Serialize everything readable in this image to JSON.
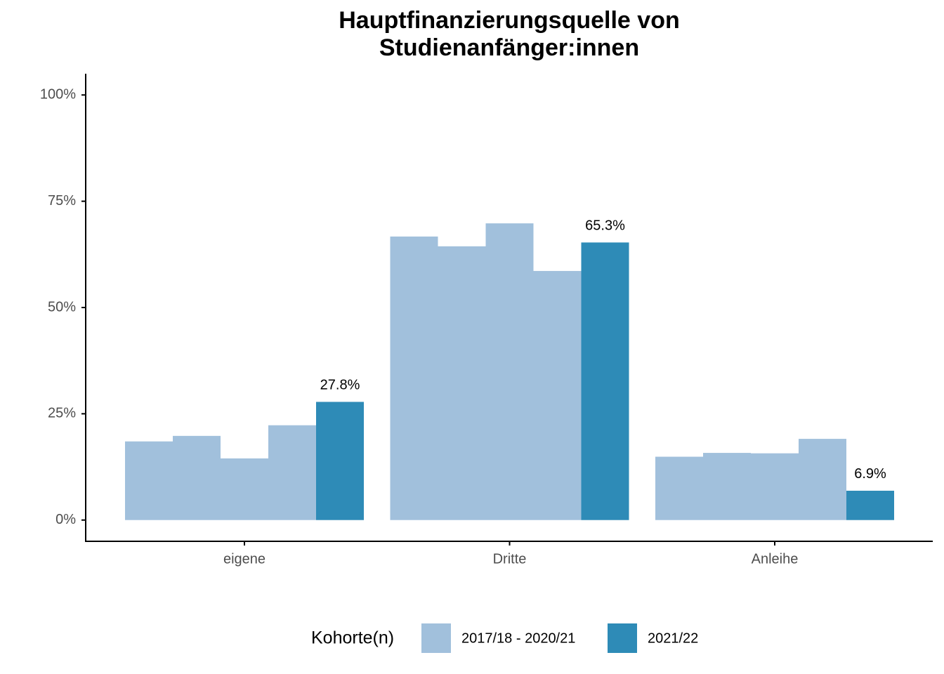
{
  "chart_data": {
    "type": "bar",
    "title": [
      "Hauptfinanzierungsquelle von",
      "Studienanfänger:innen"
    ],
    "categories": [
      "eigene",
      "Dritte",
      "Anleihe"
    ],
    "series": [
      {
        "name": "2017/18 - 2020/21",
        "color": "#a1c0dc",
        "values": [
          [
            18.5,
            19.8,
            14.5,
            22.3
          ],
          [
            66.7,
            64.4,
            69.8,
            58.6
          ],
          [
            14.9,
            15.8,
            15.7,
            19.1
          ]
        ]
      },
      {
        "name": "2021/22",
        "color": "#2e8bb7",
        "values": [
          27.8,
          65.3,
          6.9
        ],
        "value_labels": [
          "27.8%",
          "65.3%",
          "6.9%"
        ]
      }
    ],
    "legend_title": "Kohorte(n)",
    "legend_position": "bottom",
    "ylim": [
      -5,
      105
    ],
    "yticks": [
      {
        "value": 0,
        "label": "0%"
      },
      {
        "value": 25,
        "label": "25%"
      },
      {
        "value": 50,
        "label": "50%"
      },
      {
        "value": 75,
        "label": "75%"
      },
      {
        "value": 100,
        "label": "100%"
      }
    ],
    "grid": false
  }
}
